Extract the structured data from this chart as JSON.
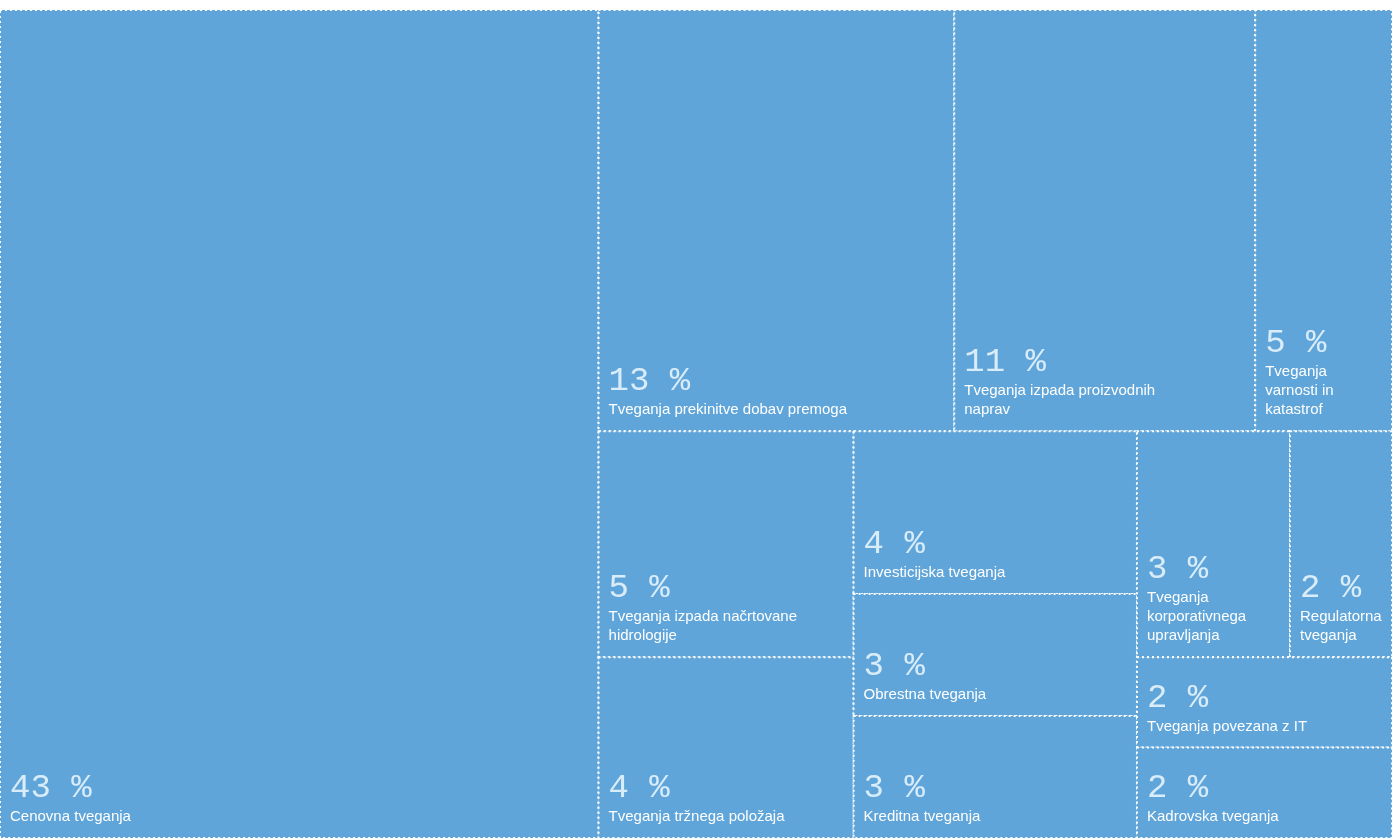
{
  "chart_data": {
    "type": "other",
    "categories": [
      "Cenovna tveganja",
      "Tveganja prekinitve dobav premoga",
      "Tveganja izpada proizvodnih naprav",
      "Tveganja varnosti in katastrof",
      "Tveganja izpada načrtovane hidrologije",
      "Tveganja tržnega položaja",
      "Investicijska tveganja",
      "Obrestna tveganja",
      "Kreditna tveganja",
      "Tveganja korporativnega upravljanja",
      "Regulatorna tveganja",
      "Tveganja povezana z IT",
      "Kadrovska tveganja"
    ],
    "values": [
      43,
      13,
      11,
      5,
      5,
      4,
      4,
      3,
      3,
      3,
      2,
      2,
      2
    ],
    "value_labels": [
      "43 %",
      "13 %",
      "11 %",
      "5 %",
      "5 %",
      "4 %",
      "4 %",
      "3 %",
      "3 %",
      "3 %",
      "2 %",
      "2 %",
      "2 %"
    ],
    "color": "#5fa5d9"
  }
}
